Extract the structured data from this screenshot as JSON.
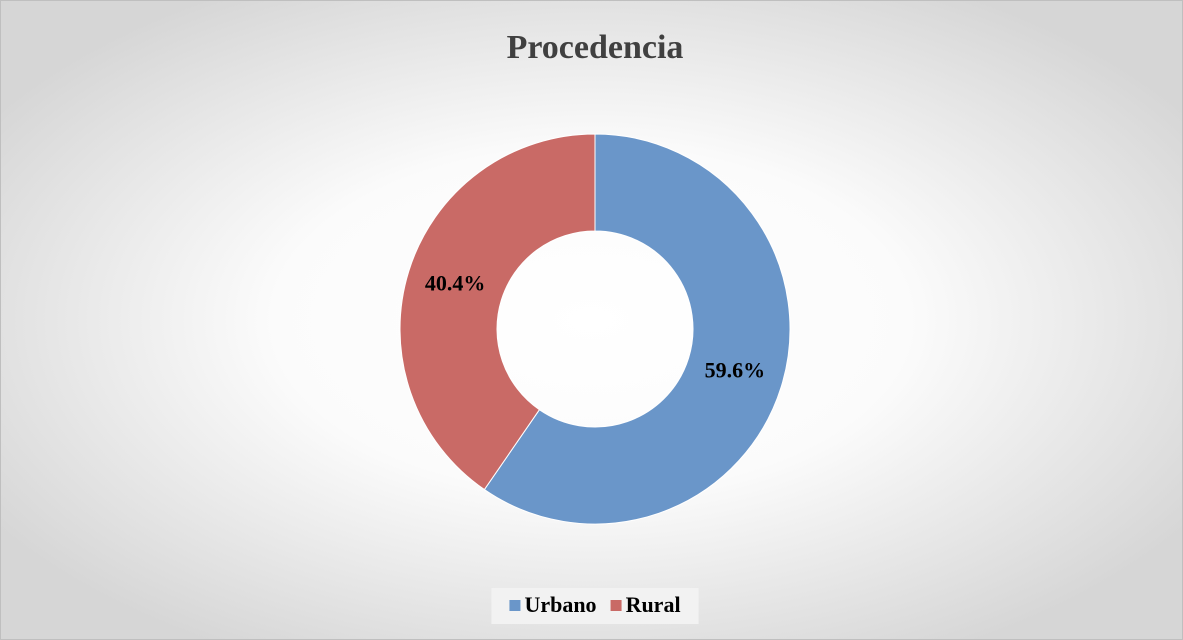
{
  "chart_data": {
    "type": "doughnut",
    "title": "Procedencia",
    "categories": [
      "Urbano",
      "Rural"
    ],
    "values": [
      59.6,
      40.4
    ],
    "value_labels": [
      "59.6%",
      "40.4%"
    ],
    "colors": [
      "#6a96c9",
      "#c96a66"
    ],
    "legend": "bottom"
  }
}
